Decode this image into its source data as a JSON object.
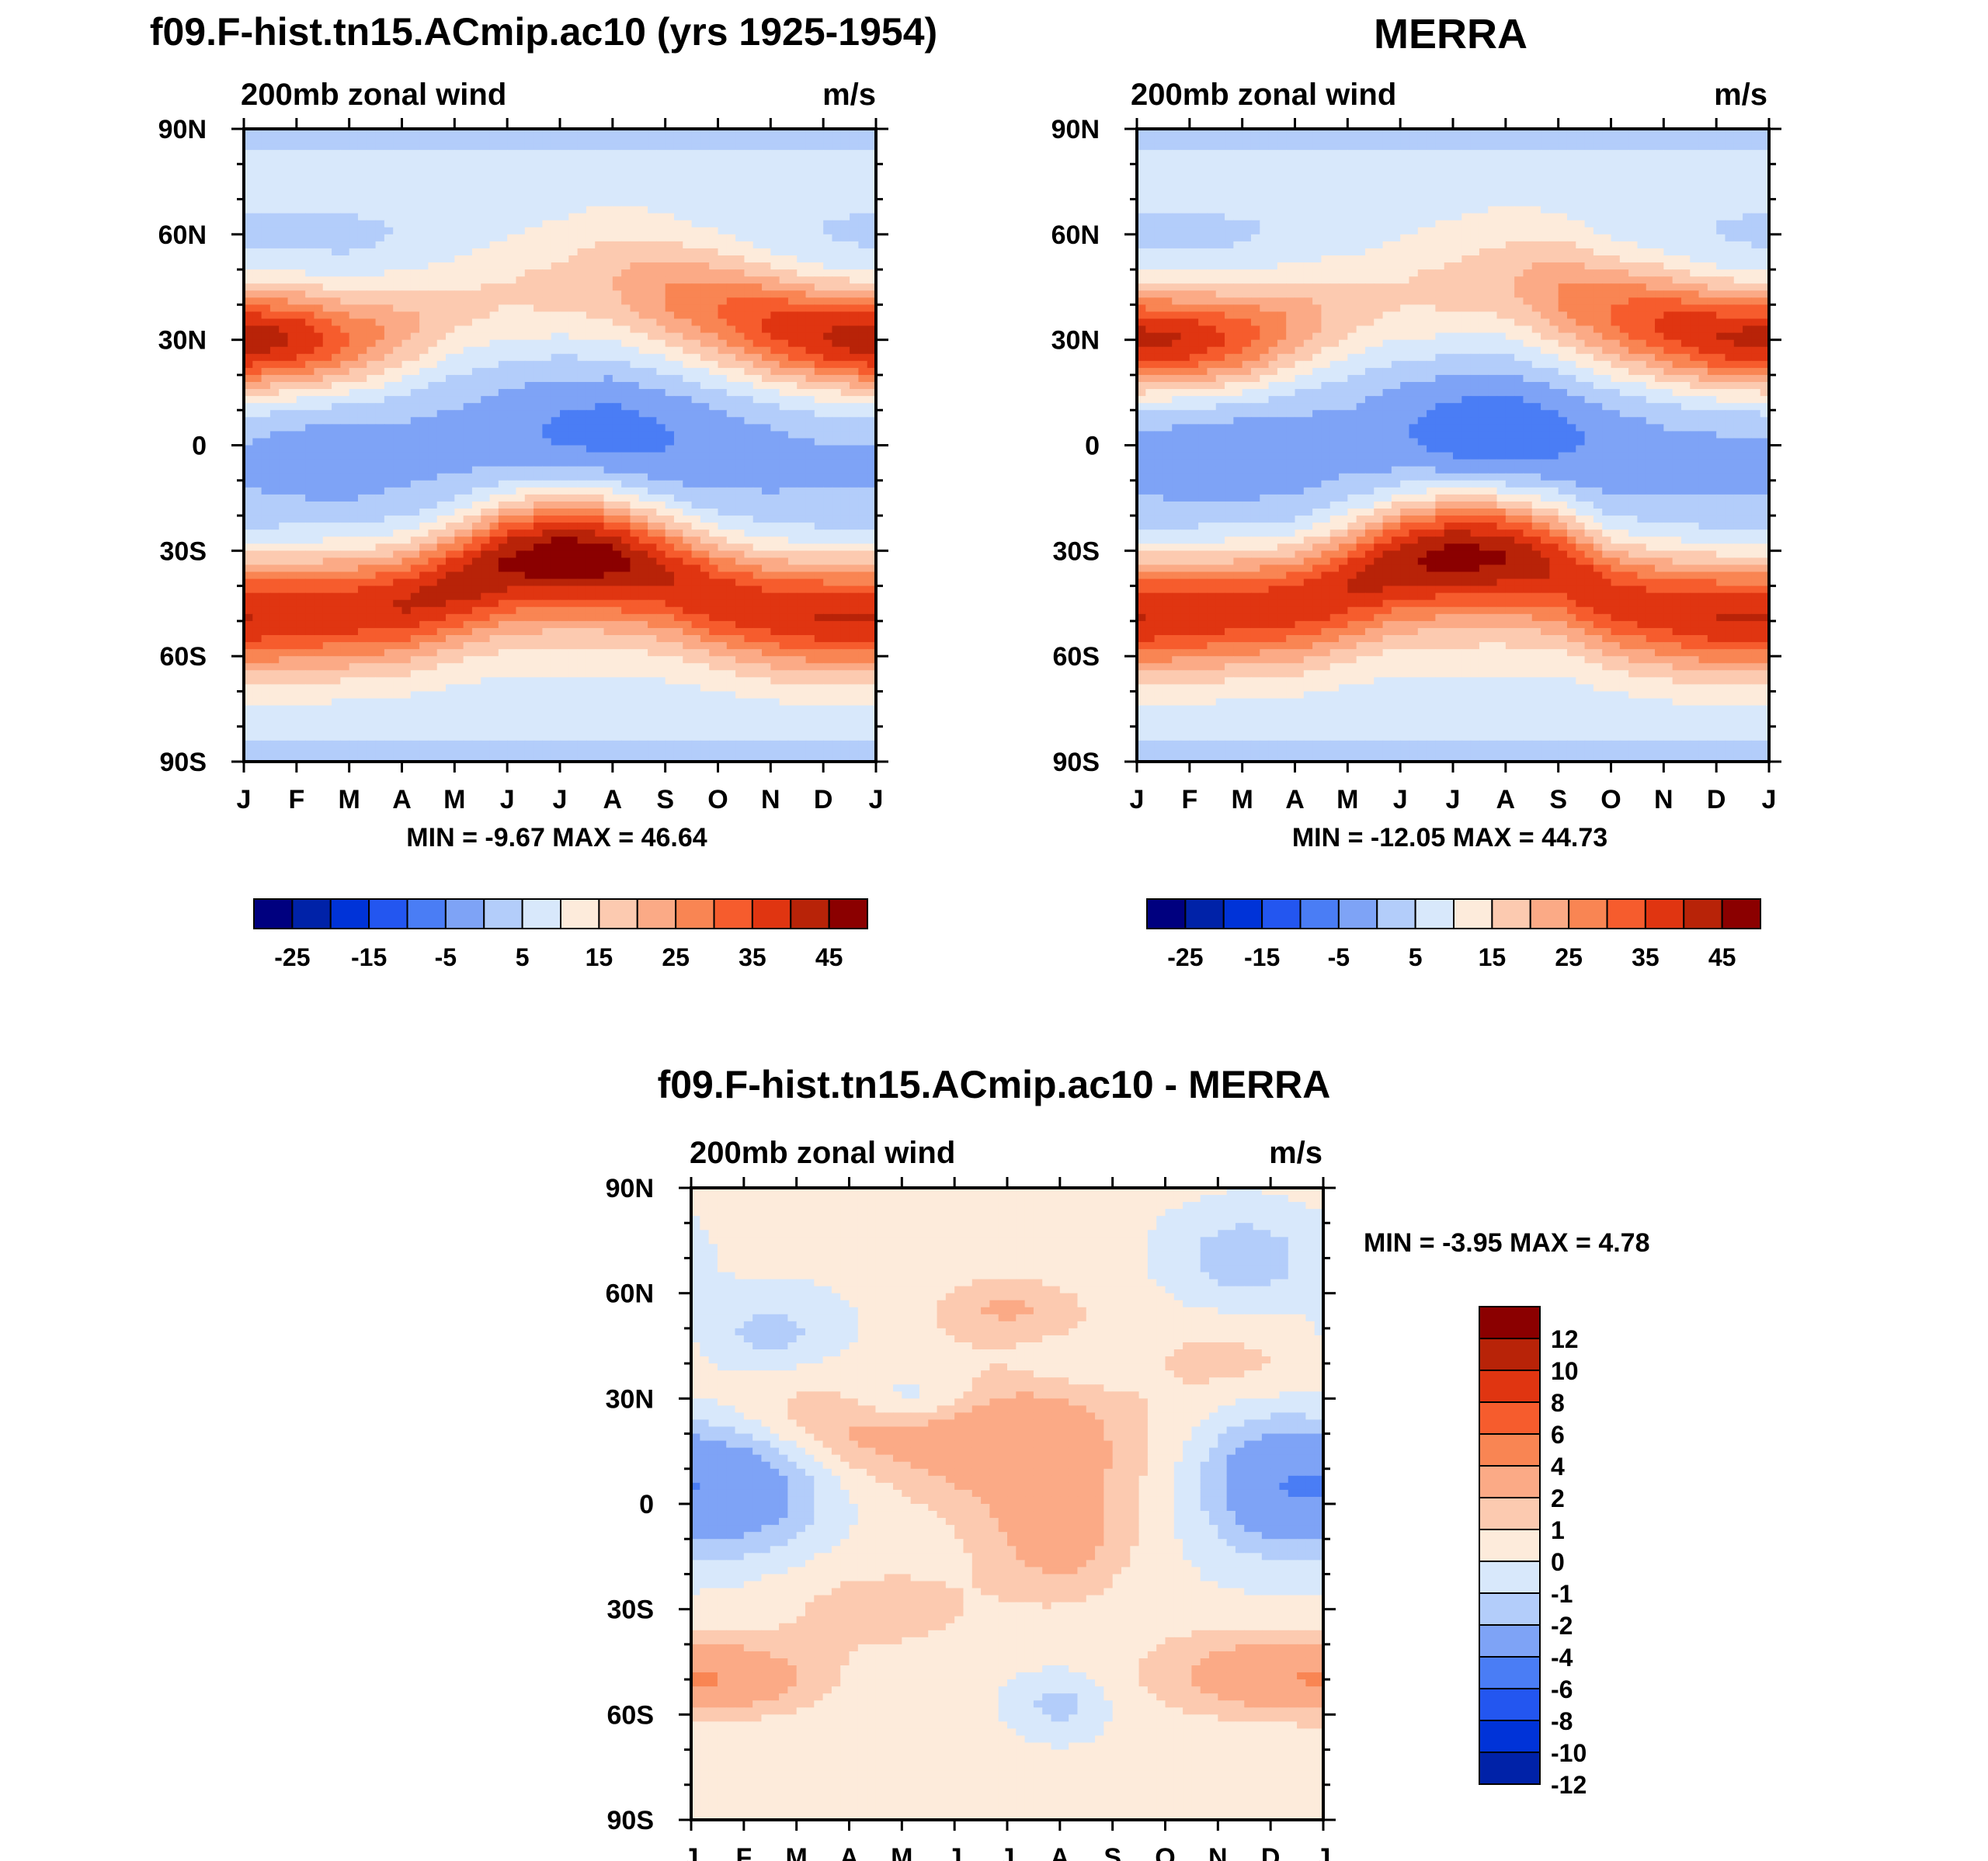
{
  "x_months": [
    "J",
    "F",
    "M",
    "A",
    "M",
    "J",
    "J",
    "A",
    "S",
    "O",
    "N",
    "D",
    "J"
  ],
  "lat_ticks": [
    "90N",
    "60N",
    "30N",
    "0",
    "30S",
    "60S",
    "90S"
  ],
  "colors": {
    "abs_palette": [
      "#00007f",
      "#0022a8",
      "#0033d8",
      "#2356f0",
      "#4a7df5",
      "#7ea3f6",
      "#b3cdfa",
      "#d8e8fb",
      "#fdebdb",
      "#fccab0",
      "#fbaa86",
      "#f98553",
      "#f65c2d",
      "#e03511",
      "#b82308",
      "#8b0000"
    ],
    "diff_palette": [
      "#00007f",
      "#0022a8",
      "#0033d8",
      "#2356f0",
      "#4a7df5",
      "#7ea3f6",
      "#b3cdfa",
      "#d8e8fb",
      "#fdebdb",
      "#fccab0",
      "#fbaa86",
      "#f98553",
      "#f65c2d",
      "#e03511",
      "#b82308",
      "#8b0000"
    ]
  },
  "chart_data": [
    {
      "id": "model",
      "type": "heatmap",
      "title": "f09.F-hist.tn15.ACmip.ac10 (yrs 1925-1954)",
      "left_label": "200mb zonal wind",
      "right_label": "m/s",
      "stats": "MIN =  -9.67 MAX =  46.64",
      "min": -9.67,
      "max": 46.64,
      "colorbar_levels": [
        -30,
        -25,
        -20,
        -15,
        -10,
        -5,
        0,
        5,
        10,
        15,
        20,
        25,
        30,
        35,
        40,
        45
      ],
      "colorbar_labels": [
        "-25",
        "-15",
        "-5",
        "5",
        "15",
        "25",
        "35",
        "45"
      ],
      "features": {
        "nh_jet": [
          [
            1,
            30,
            44
          ],
          [
            2,
            30,
            40
          ],
          [
            3,
            30,
            30
          ],
          [
            4,
            33,
            22
          ],
          [
            5,
            38,
            16
          ],
          [
            6,
            42,
            15
          ],
          [
            7,
            44,
            16
          ],
          [
            8,
            45,
            19
          ],
          [
            9,
            42,
            25
          ],
          [
            10,
            38,
            30
          ],
          [
            11,
            34,
            36
          ],
          [
            12,
            31,
            40
          ]
        ],
        "sh_jet": [
          [
            1,
            -48,
            28
          ],
          [
            2,
            -47,
            27
          ],
          [
            3,
            -46,
            27
          ],
          [
            4,
            -44,
            29
          ],
          [
            5,
            -38,
            33
          ],
          [
            6,
            -32,
            40
          ],
          [
            7,
            -30,
            45
          ],
          [
            8,
            -31,
            42
          ],
          [
            9,
            -35,
            33
          ],
          [
            10,
            -42,
            28
          ],
          [
            11,
            -46,
            27
          ],
          [
            12,
            -48,
            28
          ]
        ],
        "eq_val": [
          [
            1,
            -1
          ],
          [
            2,
            -3
          ],
          [
            3,
            -4
          ],
          [
            4,
            -2
          ],
          [
            5,
            -2
          ],
          [
            6,
            -4
          ],
          [
            7,
            -7
          ],
          [
            8,
            -8
          ],
          [
            9,
            -6
          ],
          [
            10,
            -3
          ],
          [
            11,
            -2
          ],
          [
            12,
            -1
          ]
        ]
      }
    },
    {
      "id": "obs",
      "type": "heatmap",
      "title": "MERRA",
      "left_label": "200mb zonal wind",
      "right_label": "m/s",
      "stats": "MIN = -12.05 MAX =  44.73",
      "min": -12.05,
      "max": 44.73,
      "colorbar_levels": [
        -30,
        -25,
        -20,
        -15,
        -10,
        -5,
        0,
        5,
        10,
        15,
        20,
        25,
        30,
        35,
        40,
        45
      ],
      "colorbar_labels": [
        "-25",
        "-15",
        "-5",
        "5",
        "15",
        "25",
        "35",
        "45"
      ],
      "features": {
        "nh_jet": [
          [
            1,
            30,
            42
          ],
          [
            2,
            30,
            40
          ],
          [
            3,
            31,
            33
          ],
          [
            4,
            34,
            24
          ],
          [
            5,
            38,
            17
          ],
          [
            6,
            42,
            15
          ],
          [
            7,
            44,
            16
          ],
          [
            8,
            45,
            18
          ],
          [
            9,
            42,
            25
          ],
          [
            10,
            37,
            30
          ],
          [
            11,
            34,
            36
          ],
          [
            12,
            31,
            40
          ]
        ],
        "sh_jet": [
          [
            1,
            -48,
            28
          ],
          [
            2,
            -47,
            27
          ],
          [
            3,
            -46,
            26
          ],
          [
            4,
            -44,
            27
          ],
          [
            5,
            -38,
            31
          ],
          [
            6,
            -32,
            38
          ],
          [
            7,
            -30,
            43
          ],
          [
            8,
            -30,
            41
          ],
          [
            9,
            -33,
            33
          ],
          [
            10,
            -42,
            27
          ],
          [
            11,
            -46,
            26
          ],
          [
            12,
            -48,
            28
          ]
        ],
        "eq_val": [
          [
            1,
            -2
          ],
          [
            2,
            -4
          ],
          [
            3,
            -4
          ],
          [
            4,
            -3
          ],
          [
            5,
            -2
          ],
          [
            6,
            -5
          ],
          [
            7,
            -9
          ],
          [
            8,
            -11
          ],
          [
            9,
            -7
          ],
          [
            10,
            -4
          ],
          [
            11,
            -2
          ],
          [
            12,
            -2
          ]
        ]
      }
    },
    {
      "id": "diff",
      "type": "heatmap",
      "title": "f09.F-hist.tn15.ACmip.ac10 - MERRA",
      "left_label": "200mb zonal wind",
      "right_label": "m/s",
      "stats": "MIN =  -3.95 MAX =   4.78",
      "min": -3.95,
      "max": 4.78,
      "colorbar_levels": [
        -12,
        -10,
        -8,
        -6,
        -4,
        -2,
        -1,
        0,
        1,
        2,
        4,
        6,
        8,
        10,
        12
      ],
      "colorbar_labels": [
        "12",
        "10",
        "8",
        "6",
        "4",
        "2",
        "1",
        "0",
        "-1",
        "-2",
        "-4",
        "-6",
        "-8",
        "-10",
        "-12"
      ]
    }
  ]
}
